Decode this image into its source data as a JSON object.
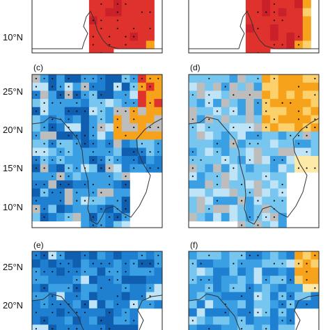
{
  "figure": {
    "panel_labels": [
      "(c)",
      "(d)",
      "(e)",
      "(f)"
    ],
    "lat_ticks": [
      "10°N",
      "15°N",
      "20°N",
      "25°N"
    ],
    "colors": {
      "deep_red": "#c9202a",
      "red": "#e0322d",
      "orange": "#f7a21b",
      "light_orange": "#fcd06a",
      "pale_yellow": "#fde9a8",
      "gray": "#bdbdbd",
      "pale_blue": "#bfe3f7",
      "light_blue": "#76c6f0",
      "mid_blue": "#3aa0e3",
      "blue": "#1f7fd0",
      "dark_blue": "#0f5eb0",
      "coast": "#333333"
    },
    "panels": [
      {
        "id": "b-top-left",
        "label": "",
        "lat_labels_shown": [
          "10°N"
        ]
      },
      {
        "id": "b-top-right",
        "label": "",
        "lat_labels_shown": []
      },
      {
        "id": "c",
        "label": "(c)",
        "lat_labels_shown": [
          "25°N",
          "20°N",
          "15°N",
          "10°N"
        ]
      },
      {
        "id": "d",
        "label": "(d)",
        "lat_labels_shown": []
      },
      {
        "id": "e",
        "label": "(e)",
        "lat_labels_shown": [
          "25°N",
          "20°N"
        ]
      },
      {
        "id": "f",
        "label": "(f)",
        "lat_labels_shown": []
      }
    ]
  }
}
